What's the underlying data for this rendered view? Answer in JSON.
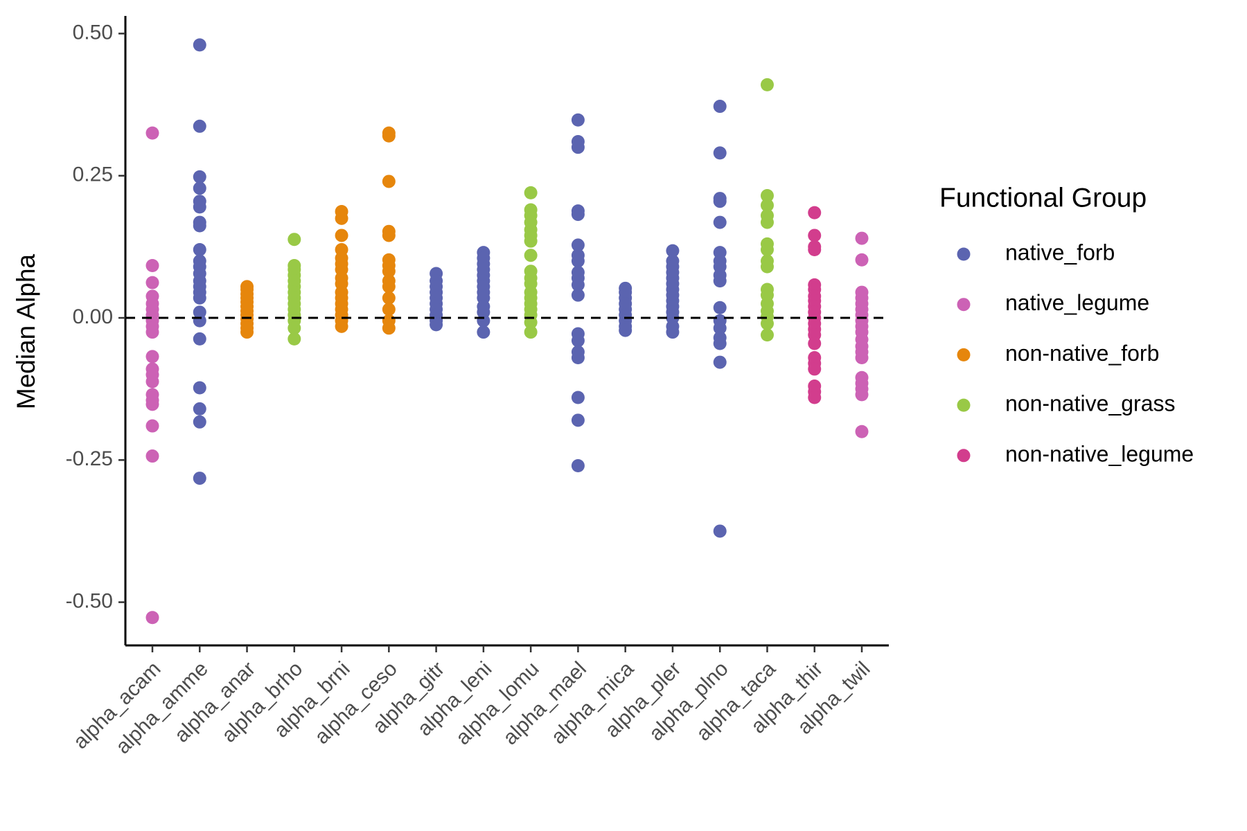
{
  "chart_data": {
    "type": "strip",
    "y_label": "Median Alpha",
    "legend_title": "Functional Group",
    "legend_position": "right",
    "categories": [
      "alpha_acam",
      "alpha_amme",
      "alpha_anar",
      "alpha_brho",
      "alpha_brni",
      "alpha_ceso",
      "alpha_gitr",
      "alpha_leni",
      "alpha_lomu",
      "alpha_mael",
      "alpha_mica",
      "alpha_pler",
      "alpha_plno",
      "alpha_taca",
      "alpha_thir",
      "alpha_twil"
    ],
    "ylim": [
      -0.576,
      0.531
    ],
    "yticks": [
      {
        "value": -0.5,
        "label": "-0.50"
      },
      -0.25,
      {
        "value": 0,
        "label": "0.00"
      },
      0.25,
      {
        "value": 0.5,
        "label": "0.50"
      }
    ],
    "reference_line": 0,
    "series": [
      {
        "name": "native_forb",
        "color": "#5b64b0",
        "x": [
          "alpha_amme",
          "alpha_amme",
          "alpha_amme",
          "alpha_amme",
          "alpha_amme",
          "alpha_amme",
          "alpha_amme",
          "alpha_amme",
          "alpha_amme",
          "alpha_amme",
          "alpha_amme",
          "alpha_amme",
          "alpha_amme",
          "alpha_amme",
          "alpha_amme",
          "alpha_amme",
          "alpha_amme",
          "alpha_amme",
          "alpha_amme",
          "alpha_amme",
          "alpha_amme",
          "alpha_amme",
          "alpha_amme",
          "alpha_gitr",
          "alpha_gitr",
          "alpha_gitr",
          "alpha_gitr",
          "alpha_gitr",
          "alpha_gitr",
          "alpha_gitr",
          "alpha_gitr",
          "alpha_gitr",
          "alpha_gitr",
          "alpha_leni",
          "alpha_leni",
          "alpha_leni",
          "alpha_leni",
          "alpha_leni",
          "alpha_leni",
          "alpha_leni",
          "alpha_leni",
          "alpha_leni",
          "alpha_leni",
          "alpha_leni",
          "alpha_leni",
          "alpha_leni",
          "alpha_mael",
          "alpha_mael",
          "alpha_mael",
          "alpha_mael",
          "alpha_mael",
          "alpha_mael",
          "alpha_mael",
          "alpha_mael",
          "alpha_mael",
          "alpha_mael",
          "alpha_mael",
          "alpha_mael",
          "alpha_mael",
          "alpha_mael",
          "alpha_mael",
          "alpha_mael",
          "alpha_mael",
          "alpha_mael",
          "alpha_mael",
          "alpha_mica",
          "alpha_mica",
          "alpha_mica",
          "alpha_mica",
          "alpha_mica",
          "alpha_mica",
          "alpha_mica",
          "alpha_mica",
          "alpha_mica",
          "alpha_pler",
          "alpha_pler",
          "alpha_pler",
          "alpha_pler",
          "alpha_pler",
          "alpha_pler",
          "alpha_pler",
          "alpha_pler",
          "alpha_pler",
          "alpha_pler",
          "alpha_pler",
          "alpha_pler",
          "alpha_pler",
          "alpha_pler",
          "alpha_plno",
          "alpha_plno",
          "alpha_plno",
          "alpha_plno",
          "alpha_plno",
          "alpha_plno",
          "alpha_plno",
          "alpha_plno",
          "alpha_plno",
          "alpha_plno",
          "alpha_plno",
          "alpha_plno",
          "alpha_plno",
          "alpha_plno",
          "alpha_plno",
          "alpha_plno",
          "alpha_plno"
        ],
        "values": [
          0.48,
          0.337,
          0.248,
          0.228,
          0.205,
          0.195,
          0.168,
          0.162,
          0.12,
          0.1,
          0.09,
          0.078,
          0.065,
          0.055,
          0.045,
          0.035,
          0.01,
          -0.005,
          -0.037,
          -0.123,
          -0.16,
          -0.183,
          -0.282,
          0.078,
          0.065,
          0.055,
          0.045,
          0.035,
          0.025,
          0.015,
          0.005,
          -0.005,
          -0.012,
          0.115,
          0.105,
          0.095,
          0.085,
          0.075,
          0.065,
          0.055,
          0.045,
          0.035,
          0.02,
          0.01,
          -0.005,
          -0.025,
          0.348,
          0.31,
          0.3,
          0.188,
          0.182,
          0.128,
          0.11,
          0.1,
          0.08,
          0.07,
          0.058,
          0.04,
          -0.028,
          -0.04,
          -0.06,
          -0.07,
          -0.14,
          -0.18,
          -0.26,
          0.052,
          0.045,
          0.035,
          0.025,
          0.015,
          0.005,
          -0.005,
          -0.015,
          -0.022,
          0.118,
          0.1,
          0.09,
          0.08,
          0.07,
          0.06,
          0.05,
          0.04,
          0.03,
          0.02,
          0.01,
          0,
          -0.015,
          -0.025,
          0.372,
          0.29,
          0.21,
          0.205,
          0.168,
          0.115,
          0.1,
          0.09,
          0.075,
          0.065,
          0.018,
          -0.005,
          -0.018,
          -0.035,
          -0.045,
          -0.078,
          -0.375
        ]
      },
      {
        "name": "native_legume",
        "color": "#cc62b5",
        "x": [
          "alpha_acam",
          "alpha_acam",
          "alpha_acam",
          "alpha_acam",
          "alpha_acam",
          "alpha_acam",
          "alpha_acam",
          "alpha_acam",
          "alpha_acam",
          "alpha_acam",
          "alpha_acam",
          "alpha_acam",
          "alpha_acam",
          "alpha_acam",
          "alpha_acam",
          "alpha_acam",
          "alpha_acam",
          "alpha_acam",
          "alpha_acam",
          "alpha_acam",
          "alpha_twil",
          "alpha_twil",
          "alpha_twil",
          "alpha_twil",
          "alpha_twil",
          "alpha_twil",
          "alpha_twil",
          "alpha_twil",
          "alpha_twil",
          "alpha_twil",
          "alpha_twil",
          "alpha_twil",
          "alpha_twil",
          "alpha_twil",
          "alpha_twil",
          "alpha_twil",
          "alpha_twil",
          "alpha_twil",
          "alpha_twil"
        ],
        "values": [
          0.325,
          0.092,
          0.062,
          0.038,
          0.025,
          0.015,
          0.005,
          -0.005,
          -0.015,
          -0.025,
          -0.068,
          -0.09,
          -0.1,
          -0.112,
          -0.135,
          -0.145,
          -0.152,
          -0.19,
          -0.243,
          -0.527,
          0.14,
          0.102,
          0.045,
          0.035,
          0.025,
          0.015,
          0.005,
          -0.005,
          -0.015,
          -0.025,
          -0.038,
          -0.05,
          -0.06,
          -0.07,
          -0.105,
          -0.115,
          -0.125,
          -0.135,
          -0.2
        ]
      },
      {
        "name": "non-native_forb",
        "color": "#e6860c",
        "x": [
          "alpha_anar",
          "alpha_anar",
          "alpha_anar",
          "alpha_anar",
          "alpha_anar",
          "alpha_anar",
          "alpha_anar",
          "alpha_anar",
          "alpha_anar",
          "alpha_anar",
          "alpha_anar",
          "alpha_anar",
          "alpha_brni",
          "alpha_brni",
          "alpha_brni",
          "alpha_brni",
          "alpha_brni",
          "alpha_brni",
          "alpha_brni",
          "alpha_brni",
          "alpha_brni",
          "alpha_brni",
          "alpha_brni",
          "alpha_brni",
          "alpha_brni",
          "alpha_brni",
          "alpha_brni",
          "alpha_brni",
          "alpha_ceso",
          "alpha_ceso",
          "alpha_ceso",
          "alpha_ceso",
          "alpha_ceso",
          "alpha_ceso",
          "alpha_ceso",
          "alpha_ceso",
          "alpha_ceso",
          "alpha_ceso",
          "alpha_ceso",
          "alpha_ceso",
          "alpha_ceso",
          "alpha_ceso"
        ],
        "values": [
          0.055,
          0.05,
          0.042,
          0.035,
          0.028,
          0.02,
          0.012,
          0.005,
          -0.002,
          -0.01,
          -0.018,
          -0.025,
          0.187,
          0.175,
          0.145,
          0.12,
          0.105,
          0.095,
          0.085,
          0.07,
          0.06,
          0.045,
          0.035,
          0.025,
          0.015,
          0.005,
          -0.005,
          -0.015,
          0.325,
          0.32,
          0.24,
          0.152,
          0.145,
          0.102,
          0.092,
          0.082,
          0.065,
          0.055,
          0.035,
          0.015,
          -0.005,
          -0.018
        ]
      },
      {
        "name": "non-native_grass",
        "color": "#99c946",
        "x": [
          "alpha_brho",
          "alpha_brho",
          "alpha_brho",
          "alpha_brho",
          "alpha_brho",
          "alpha_brho",
          "alpha_brho",
          "alpha_brho",
          "alpha_brho",
          "alpha_brho",
          "alpha_brho",
          "alpha_brho",
          "alpha_brho",
          "alpha_brho",
          "alpha_lomu",
          "alpha_lomu",
          "alpha_lomu",
          "alpha_lomu",
          "alpha_lomu",
          "alpha_lomu",
          "alpha_lomu",
          "alpha_lomu",
          "alpha_lomu",
          "alpha_lomu",
          "alpha_lomu",
          "alpha_lomu",
          "alpha_lomu",
          "alpha_lomu",
          "alpha_lomu",
          "alpha_lomu",
          "alpha_lomu",
          "alpha_lomu",
          "alpha_taca",
          "alpha_taca",
          "alpha_taca",
          "alpha_taca",
          "alpha_taca",
          "alpha_taca",
          "alpha_taca",
          "alpha_taca",
          "alpha_taca",
          "alpha_taca",
          "alpha_taca",
          "alpha_taca",
          "alpha_taca",
          "alpha_taca",
          "alpha_taca",
          "alpha_taca"
        ],
        "values": [
          0.138,
          0.092,
          0.085,
          0.075,
          0.065,
          0.055,
          0.045,
          0.035,
          0.025,
          0.015,
          0.005,
          -0.005,
          -0.018,
          -0.037,
          0.22,
          0.19,
          0.18,
          0.168,
          0.155,
          0.145,
          0.135,
          0.11,
          0.082,
          0.07,
          0.06,
          0.045,
          0.035,
          0.025,
          0.015,
          0.005,
          -0.008,
          -0.025,
          0.41,
          0.215,
          0.198,
          0.18,
          0.168,
          0.13,
          0.12,
          0.1,
          0.09,
          0.05,
          0.04,
          0.025,
          0.012,
          0.002,
          -0.01,
          -0.03
        ]
      },
      {
        "name": "non-native_legume",
        "color": "#d23d8d",
        "x": [
          "alpha_thir",
          "alpha_thir",
          "alpha_thir",
          "alpha_thir",
          "alpha_thir",
          "alpha_thir",
          "alpha_thir",
          "alpha_thir",
          "alpha_thir",
          "alpha_thir",
          "alpha_thir",
          "alpha_thir",
          "alpha_thir",
          "alpha_thir",
          "alpha_thir",
          "alpha_thir",
          "alpha_thir",
          "alpha_thir",
          "alpha_thir",
          "alpha_thir",
          "alpha_thir"
        ],
        "values": [
          0.185,
          0.145,
          0.125,
          0.12,
          0.058,
          0.05,
          0.038,
          0.03,
          0.02,
          0.01,
          0,
          -0.01,
          -0.02,
          -0.03,
          -0.045,
          -0.07,
          -0.08,
          -0.09,
          -0.12,
          -0.13,
          -0.14
        ]
      }
    ]
  }
}
